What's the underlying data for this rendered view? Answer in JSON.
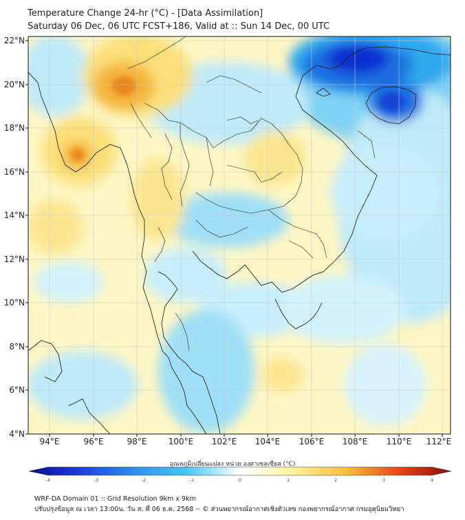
{
  "header": {
    "title_line1": "Temperature Change 24-hr (°C) - [Data Assimilation]",
    "title_line2": "Saturday 06 Dec, 06 UTC FCST+186, Valid at :: Sun 14 Dec, 00 UTC"
  },
  "map": {
    "lat_labels": [
      "22°N",
      "20°N",
      "18°N",
      "16°N",
      "14°N",
      "12°N",
      "10°N",
      "8°N",
      "6°N",
      "4°N"
    ],
    "lon_labels": [
      "94°E",
      "96°E",
      "98°E",
      "100°E",
      "102°E",
      "104°E",
      "106°E",
      "108°E",
      "110°E",
      "112°E"
    ],
    "colors": {
      "background": "#ffffff",
      "warm_light": "#fdf6b8",
      "warm_mid": "#fbe07a",
      "warm_strong": "#f5b43a",
      "hot": "#e8871e",
      "cool_light": "#c8eefb",
      "cool_mid": "#7fd3f5",
      "cool_strong": "#2fa8ef",
      "cold": "#1f6ee0",
      "very_cold": "#0a2fd0",
      "border": "#111111"
    }
  },
  "colorbar": {
    "title": "อุณหภูมิเปลี่ยนแปลง หน่วย องศาเซลเซียส (°C)",
    "ticks": [
      "-4",
      "-3",
      "-2",
      "-1",
      "0",
      "1",
      "2",
      "3",
      "4"
    ],
    "min": -4,
    "max": 4
  },
  "footer": {
    "line1": "WRF-DA Domain 01 :: Grid Resolution 9km x 9km",
    "line2": "ปรับปรุงข้อมูล ณ เวลา 13:00น. วัน ส. ที่ 06 ธ.ค. 2568 -- © ส่วนพยากรณ์อากาศเชิงตัวเลข กองพยากรณ์อากาศ กรมอุตุนิยมวิทยา"
  }
}
